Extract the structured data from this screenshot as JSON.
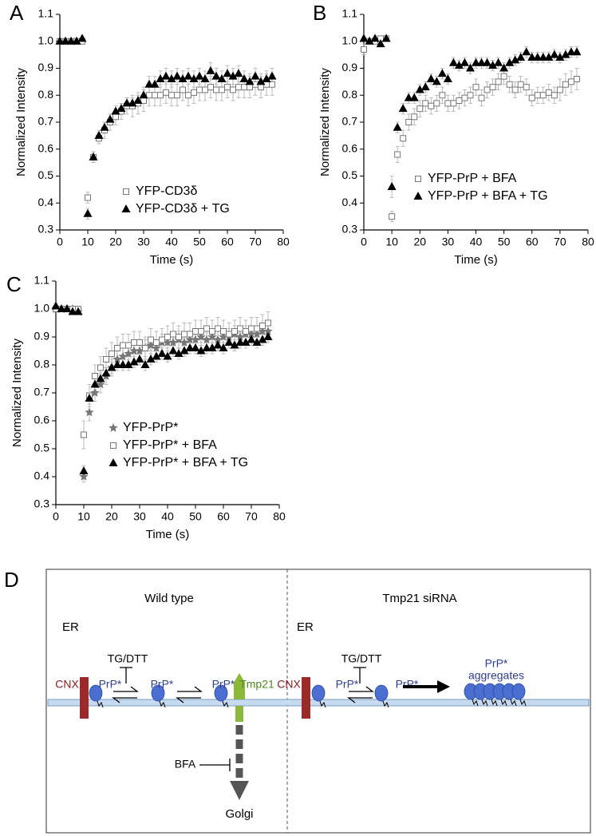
{
  "chart_data": [
    {
      "type": "scatter",
      "panel": "A",
      "xlabel": "Time (s)",
      "ylabel": "Normalized Intensity",
      "x": [
        0,
        2,
        4,
        6,
        8,
        10,
        12,
        14,
        16,
        18,
        20,
        22,
        24,
        26,
        28,
        30,
        32,
        34,
        36,
        38,
        40,
        42,
        44,
        46,
        48,
        50,
        52,
        54,
        56,
        58,
        60,
        62,
        64,
        66,
        68,
        70,
        72,
        74,
        76
      ],
      "xlim": [
        0,
        80
      ],
      "xticks": [
        0,
        10,
        20,
        30,
        40,
        50,
        60,
        70,
        80
      ],
      "ylim": [
        0.3,
        1.1
      ],
      "yticks": [
        0.3,
        0.4,
        0.5,
        0.6,
        0.7,
        0.8,
        0.9,
        {
          "value": 1,
          "label": "1.0"
        },
        1.1
      ],
      "series": [
        {
          "name": "YFP-CD3δ",
          "marker": "square-open",
          "color": "#777777",
          "values": [
            1.0,
            1.0,
            1.0,
            1.0,
            1.0,
            0.42,
            0.57,
            0.64,
            0.67,
            0.7,
            0.72,
            0.74,
            0.76,
            0.76,
            0.77,
            0.78,
            0.8,
            0.8,
            0.8,
            0.81,
            0.8,
            0.8,
            0.82,
            0.8,
            0.81,
            0.82,
            0.82,
            0.83,
            0.82,
            0.82,
            0.83,
            0.82,
            0.83,
            0.83,
            0.83,
            0.84,
            0.83,
            0.84,
            0.84
          ],
          "errors": [
            0.01,
            0.01,
            0.01,
            0.01,
            0.01,
            0.02,
            0.02,
            0.02,
            0.03,
            0.03,
            0.03,
            0.03,
            0.03,
            0.04,
            0.04,
            0.04,
            0.04,
            0.04,
            0.04,
            0.04,
            0.04,
            0.04,
            0.04,
            0.04,
            0.04,
            0.04,
            0.04,
            0.04,
            0.04,
            0.04,
            0.04,
            0.04,
            0.04,
            0.04,
            0.04,
            0.04,
            0.04,
            0.04,
            0.04
          ]
        },
        {
          "name": "YFP-CD3δ + TG",
          "marker": "triangle",
          "color": "#000000",
          "values": [
            1.0,
            1.0,
            1.0,
            1.0,
            1.01,
            0.36,
            0.57,
            0.65,
            0.68,
            0.71,
            0.74,
            0.75,
            0.77,
            0.77,
            0.78,
            0.8,
            0.84,
            0.84,
            0.86,
            0.87,
            0.86,
            0.87,
            0.86,
            0.87,
            0.86,
            0.87,
            0.86,
            0.89,
            0.87,
            0.86,
            0.88,
            0.87,
            0.88,
            0.86,
            0.85,
            0.87,
            0.85,
            0.86,
            0.87
          ],
          "errors": [
            0.01,
            0.01,
            0.01,
            0.01,
            0.01,
            0.02,
            0.02,
            0.02,
            0.02,
            0.02,
            0.02,
            0.02,
            0.02,
            0.02,
            0.02,
            0.03,
            0.03,
            0.03,
            0.03,
            0.03,
            0.03,
            0.03,
            0.03,
            0.03,
            0.03,
            0.03,
            0.03,
            0.03,
            0.03,
            0.03,
            0.03,
            0.03,
            0.03,
            0.03,
            0.03,
            0.03,
            0.03,
            0.03,
            0.03
          ]
        }
      ]
    },
    {
      "type": "scatter",
      "panel": "B",
      "xlabel": "Time (s)",
      "ylabel": "Normalized Intensity",
      "x": [
        0,
        2,
        4,
        6,
        8,
        10,
        12,
        14,
        16,
        18,
        20,
        22,
        24,
        26,
        28,
        30,
        32,
        34,
        36,
        38,
        40,
        42,
        44,
        46,
        48,
        50,
        52,
        54,
        56,
        58,
        60,
        62,
        64,
        66,
        68,
        70,
        72,
        74,
        76
      ],
      "xlim": [
        0,
        80
      ],
      "xticks": [
        0,
        10,
        20,
        30,
        40,
        50,
        60,
        70,
        80
      ],
      "ylim": [
        0.3,
        1.1
      ],
      "yticks": [
        0.3,
        0.4,
        0.5,
        0.6,
        0.7,
        0.8,
        0.9,
        {
          "value": 1,
          "label": "1.0"
        },
        1.1
      ],
      "series": [
        {
          "name": "YFP-PrP + BFA",
          "marker": "square-open",
          "color": "#777777",
          "values": [
            0.97,
            1.0,
            1.0,
            1.01,
            1.01,
            0.35,
            0.58,
            0.64,
            0.7,
            0.72,
            0.75,
            0.77,
            0.76,
            0.77,
            0.8,
            0.77,
            0.77,
            0.78,
            0.79,
            0.8,
            0.83,
            0.79,
            0.82,
            0.83,
            0.85,
            0.87,
            0.84,
            0.82,
            0.84,
            0.83,
            0.79,
            0.8,
            0.8,
            0.81,
            0.8,
            0.82,
            0.84,
            0.85,
            0.86
          ],
          "errors": [
            0.02,
            0.01,
            0.01,
            0.01,
            0.01,
            0.02,
            0.03,
            0.03,
            0.03,
            0.03,
            0.03,
            0.03,
            0.03,
            0.03,
            0.03,
            0.03,
            0.03,
            0.03,
            0.03,
            0.03,
            0.03,
            0.03,
            0.03,
            0.03,
            0.03,
            0.03,
            0.03,
            0.03,
            0.03,
            0.03,
            0.03,
            0.03,
            0.03,
            0.03,
            0.03,
            0.04,
            0.04,
            0.04,
            0.04
          ]
        },
        {
          "name": "YFP-PrP + BFA + TG",
          "marker": "triangle",
          "color": "#000000",
          "values": [
            1.01,
            1.0,
            1.01,
            0.99,
            1.01,
            0.46,
            0.68,
            0.75,
            0.79,
            0.79,
            0.82,
            0.83,
            0.86,
            0.85,
            0.88,
            0.86,
            0.92,
            0.91,
            0.92,
            0.9,
            0.92,
            0.92,
            0.92,
            0.91,
            0.92,
            0.9,
            0.92,
            0.93,
            0.94,
            0.96,
            0.94,
            0.94,
            0.94,
            0.94,
            0.95,
            0.94,
            0.95,
            0.96,
            0.96
          ],
          "errors": [
            0.01,
            0.01,
            0.01,
            0.01,
            0.01,
            0.04,
            0.02,
            0.02,
            0.02,
            0.02,
            0.02,
            0.02,
            0.02,
            0.02,
            0.02,
            0.02,
            0.02,
            0.02,
            0.02,
            0.02,
            0.02,
            0.02,
            0.02,
            0.02,
            0.02,
            0.02,
            0.02,
            0.02,
            0.02,
            0.02,
            0.02,
            0.02,
            0.02,
            0.02,
            0.02,
            0.02,
            0.02,
            0.02,
            0.02
          ]
        }
      ]
    },
    {
      "type": "scatter",
      "panel": "C",
      "xlabel": "Time (s)",
      "ylabel": "Normalized Intensity",
      "x": [
        0,
        2,
        4,
        6,
        8,
        10,
        12,
        14,
        16,
        18,
        20,
        22,
        24,
        26,
        28,
        30,
        32,
        34,
        36,
        38,
        40,
        42,
        44,
        46,
        48,
        50,
        52,
        54,
        56,
        58,
        60,
        62,
        64,
        66,
        68,
        70,
        72,
        74,
        76
      ],
      "xlim": [
        0,
        80
      ],
      "xticks": [
        0,
        10,
        20,
        30,
        40,
        50,
        60,
        70,
        80
      ],
      "ylim": [
        0.3,
        1.1
      ],
      "yticks": [
        0.3,
        0.4,
        0.5,
        0.6,
        0.7,
        0.8,
        0.9,
        {
          "value": 1,
          "label": "1.0"
        },
        1.1
      ],
      "series": [
        {
          "name": "YFP-PrP*",
          "marker": "star",
          "color": "#777777",
          "values": [
            1.0,
            1.0,
            1.0,
            1.0,
            0.99,
            0.4,
            0.63,
            0.7,
            0.73,
            0.76,
            0.79,
            0.82,
            0.83,
            0.84,
            0.85,
            0.85,
            0.86,
            0.87,
            0.86,
            0.88,
            0.88,
            0.88,
            0.89,
            0.88,
            0.89,
            0.89,
            0.9,
            0.89,
            0.9,
            0.89,
            0.9,
            0.9,
            0.91,
            0.9,
            0.91,
            0.91,
            0.91,
            0.92,
            0.92
          ],
          "errors": [
            0.01,
            0.01,
            0.01,
            0.01,
            0.01,
            0.02,
            0.03,
            0.03,
            0.03,
            0.03,
            0.03,
            0.03,
            0.03,
            0.03,
            0.03,
            0.03,
            0.03,
            0.03,
            0.03,
            0.03,
            0.03,
            0.03,
            0.03,
            0.03,
            0.03,
            0.03,
            0.03,
            0.03,
            0.03,
            0.03,
            0.03,
            0.03,
            0.03,
            0.03,
            0.03,
            0.03,
            0.03,
            0.03,
            0.03
          ]
        },
        {
          "name": "YFP-PrP* + BFA",
          "marker": "square-open",
          "color": "#777777",
          "values": [
            1.0,
            1.0,
            1.0,
            1.0,
            1.0,
            0.55,
            0.69,
            0.76,
            0.79,
            0.82,
            0.84,
            0.86,
            0.87,
            0.87,
            0.88,
            0.88,
            0.86,
            0.89,
            0.88,
            0.89,
            0.9,
            0.91,
            0.9,
            0.91,
            0.91,
            0.92,
            0.92,
            0.93,
            0.92,
            0.93,
            0.92,
            0.91,
            0.92,
            0.93,
            0.92,
            0.93,
            0.93,
            0.94,
            0.95
          ],
          "errors": [
            0.01,
            0.01,
            0.01,
            0.01,
            0.01,
            0.05,
            0.04,
            0.04,
            0.04,
            0.04,
            0.04,
            0.04,
            0.04,
            0.04,
            0.04,
            0.04,
            0.04,
            0.04,
            0.04,
            0.04,
            0.04,
            0.04,
            0.04,
            0.04,
            0.04,
            0.04,
            0.04,
            0.04,
            0.04,
            0.04,
            0.04,
            0.04,
            0.04,
            0.04,
            0.04,
            0.04,
            0.04,
            0.04,
            0.04
          ]
        },
        {
          "name": "YFP-PrP* + BFA + TG",
          "marker": "triangle",
          "color": "#000000",
          "values": [
            1.01,
            1.0,
            1.0,
            0.99,
            0.99,
            0.42,
            0.68,
            0.73,
            0.75,
            0.77,
            0.79,
            0.8,
            0.8,
            0.8,
            0.81,
            0.82,
            0.8,
            0.82,
            0.83,
            0.84,
            0.83,
            0.85,
            0.84,
            0.85,
            0.86,
            0.86,
            0.85,
            0.86,
            0.86,
            0.87,
            0.86,
            0.88,
            0.87,
            0.88,
            0.88,
            0.89,
            0.88,
            0.89,
            0.9
          ],
          "errors": [
            0.01,
            0.01,
            0.01,
            0.01,
            0.01,
            0.02,
            0.02,
            0.02,
            0.02,
            0.02,
            0.02,
            0.02,
            0.02,
            0.02,
            0.02,
            0.02,
            0.02,
            0.02,
            0.02,
            0.02,
            0.02,
            0.02,
            0.02,
            0.02,
            0.02,
            0.02,
            0.02,
            0.02,
            0.02,
            0.02,
            0.02,
            0.02,
            0.02,
            0.02,
            0.02,
            0.02,
            0.02,
            0.02,
            0.02
          ]
        }
      ]
    }
  ],
  "diagram": {
    "panel": "D",
    "left": {
      "title": "Wild type",
      "compartment": "ER",
      "stress": "TG/DTT",
      "chaperone": "CNX",
      "proteins": [
        "PrP*",
        "PrP*",
        "PrP*"
      ],
      "receptor": "Tmp21",
      "inhibitor": "BFA",
      "destination": "Golgi"
    },
    "right": {
      "title": "Tmp21 siRNA",
      "compartment": "ER",
      "stress": "TG/DTT",
      "chaperone": "CNX",
      "proteins": [
        "PrP*",
        "PrP*"
      ],
      "aggregate": [
        "PrP*",
        "aggregates"
      ]
    }
  }
}
